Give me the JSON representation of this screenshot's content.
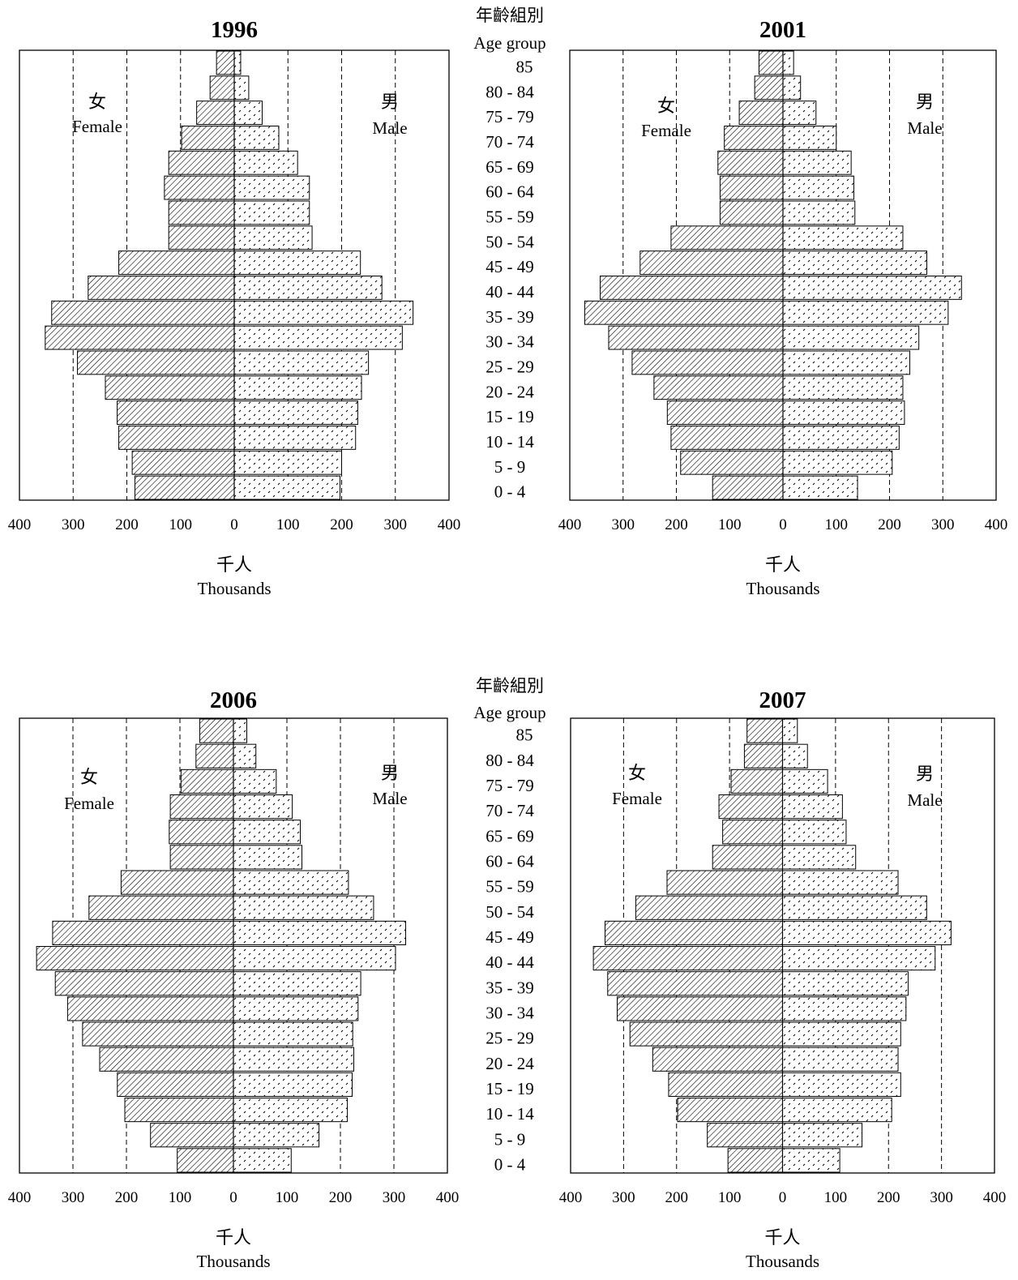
{
  "colors": {
    "axis": "#000000",
    "bar_fill": "#ffffff",
    "female_hatch": "#000000",
    "male_dots": "#000000"
  },
  "age_header": {
    "zh": "年齡組別",
    "en": "Age group"
  },
  "age_groups": [
    "85",
    "80 - 84",
    "75 - 79",
    "70 - 74",
    "65 - 69",
    "60 - 64",
    "55 - 59",
    "50 - 54",
    "45 - 49",
    "40 - 44",
    "35 - 39",
    "30 - 34",
    "25 - 29",
    "20 - 24",
    "15 - 19",
    "10 - 14",
    "5 - 9",
    "0 - 4"
  ],
  "chart_data": [
    {
      "type": "bar",
      "orientation": "horizontal-population-pyramid",
      "title": "1996",
      "female_label_zh": "女",
      "female_label_en": "Female",
      "male_label_zh": "男",
      "male_label_en": "Male",
      "xlabel_zh": "千人",
      "xlabel_en": "Thousands",
      "x_ticks": [
        "400",
        "300",
        "200",
        "100",
        "0",
        "100",
        "200",
        "300",
        "400"
      ],
      "xlim": [
        -400,
        400
      ],
      "gridlines": [
        -300,
        -200,
        -100,
        100,
        200,
        300
      ],
      "series": [
        {
          "name": "Female",
          "values": [
            33,
            45,
            70,
            98,
            122,
            130,
            122,
            122,
            215,
            272,
            340,
            352,
            292,
            240,
            218,
            215,
            190,
            185
          ]
        },
        {
          "name": "Male",
          "values": [
            12,
            27,
            52,
            83,
            118,
            140,
            140,
            145,
            235,
            275,
            333,
            313,
            250,
            237,
            230,
            226,
            200,
            197
          ]
        }
      ]
    },
    {
      "type": "bar",
      "orientation": "horizontal-population-pyramid",
      "title": "2001",
      "female_label_zh": "女",
      "female_label_en": "Female",
      "male_label_zh": "男",
      "male_label_en": "Male",
      "xlabel_zh": "千人",
      "xlabel_en": "Thousands",
      "x_ticks": [
        "400",
        "300",
        "200",
        "100",
        "0",
        "100",
        "200",
        "300",
        "400"
      ],
      "xlim": [
        -400,
        400
      ],
      "gridlines": [
        -300,
        -200,
        -100,
        100,
        200,
        300
      ],
      "series": [
        {
          "name": "Female",
          "values": [
            45,
            53,
            82,
            110,
            122,
            118,
            118,
            210,
            268,
            343,
            372,
            327,
            283,
            242,
            217,
            210,
            192,
            132
          ]
        },
        {
          "name": "Male",
          "values": [
            20,
            33,
            62,
            100,
            128,
            133,
            135,
            225,
            270,
            335,
            310,
            255,
            238,
            225,
            228,
            218,
            205,
            140
          ]
        }
      ]
    },
    {
      "type": "bar",
      "orientation": "horizontal-population-pyramid",
      "title": "2006",
      "female_label_zh": "女",
      "female_label_en": "Female",
      "male_label_zh": "男",
      "male_label_en": "Male",
      "xlabel_zh": "千人",
      "xlabel_en": "Thousands",
      "x_ticks": [
        "400",
        "300",
        "200",
        "100",
        "0",
        "100",
        "200",
        "300",
        "400"
      ],
      "xlim": [
        -400,
        400
      ],
      "gridlines": [
        -300,
        -200,
        -100,
        100,
        200,
        300
      ],
      "series": [
        {
          "name": "Female",
          "values": [
            63,
            70,
            98,
            118,
            120,
            118,
            210,
            270,
            338,
            368,
            333,
            310,
            282,
            250,
            217,
            203,
            155,
            105
          ]
        },
        {
          "name": "Male",
          "values": [
            25,
            42,
            80,
            110,
            125,
            128,
            215,
            262,
            322,
            303,
            238,
            233,
            223,
            225,
            222,
            213,
            160,
            108
          ]
        }
      ]
    },
    {
      "type": "bar",
      "orientation": "horizontal-population-pyramid",
      "title": "2007",
      "female_label_zh": "女",
      "female_label_en": "Female",
      "male_label_zh": "男",
      "male_label_en": "Male",
      "xlabel_zh": "千人",
      "xlabel_en": "Thousands",
      "x_ticks": [
        "400",
        "300",
        "200",
        "100",
        "0",
        "100",
        "200",
        "300",
        "400"
      ],
      "xlim": [
        -400,
        400
      ],
      "gridlines": [
        -300,
        -200,
        -100,
        100,
        200,
        300
      ],
      "series": [
        {
          "name": "Female",
          "values": [
            67,
            72,
            97,
            120,
            113,
            132,
            218,
            277,
            335,
            357,
            330,
            312,
            288,
            245,
            215,
            198,
            142,
            103
          ]
        },
        {
          "name": "Male",
          "values": [
            28,
            47,
            85,
            113,
            120,
            138,
            218,
            272,
            318,
            288,
            237,
            233,
            223,
            218,
            223,
            206,
            150,
            108
          ]
        }
      ]
    }
  ]
}
